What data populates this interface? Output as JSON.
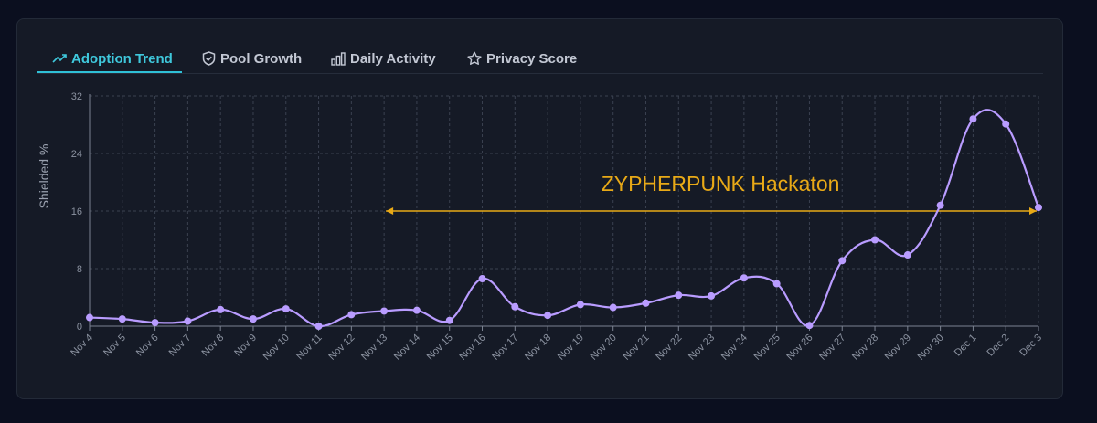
{
  "tabs": [
    {
      "label": "Adoption Trend",
      "icon": "trending-up-icon",
      "active": true
    },
    {
      "label": "Pool Growth",
      "icon": "shield-icon",
      "active": false
    },
    {
      "label": "Daily Activity",
      "icon": "bar-chart-icon",
      "active": false
    },
    {
      "label": "Privacy Score",
      "icon": "star-icon",
      "active": false
    }
  ],
  "colors": {
    "accent": "#3fc8dc",
    "line": "#b99cff",
    "annotation": "#e8a917",
    "background": "#0b0f1f",
    "card": "#151a26"
  },
  "chart_data": {
    "type": "line",
    "xlabel": "",
    "ylabel": "Shielded %",
    "ylim": [
      0,
      32
    ],
    "yticks": [
      "0",
      "8",
      "16",
      "24",
      "32"
    ],
    "grid": true,
    "categories": [
      "Nov 4",
      "Nov 5",
      "Nov 6",
      "Nov 7",
      "Nov 8",
      "Nov 9",
      "Nov 10",
      "Nov 11",
      "Nov 12",
      "Nov 13",
      "Nov 14",
      "Nov 15",
      "Nov 16",
      "Nov 17",
      "Nov 18",
      "Nov 19",
      "Nov 20",
      "Nov 21",
      "Nov 22",
      "Nov 23",
      "Nov 24",
      "Nov 25",
      "Nov 26",
      "Nov 27",
      "Nov 28",
      "Nov 29",
      "Nov 30",
      "Dec 1",
      "Dec 2",
      "Dec 3"
    ],
    "series": [
      {
        "values": [
          1.2,
          1.0,
          0.5,
          0.7,
          2.3,
          1.0,
          2.4,
          0.0,
          1.6,
          2.1,
          2.2,
          0.8,
          6.6,
          2.7,
          1.5,
          3.0,
          2.6,
          3.2,
          4.3,
          4.2,
          6.7,
          5.9,
          0.1,
          9.1,
          12.0,
          9.9,
          16.8,
          28.8,
          28.1,
          16.5
        ]
      }
    ],
    "annotation": {
      "text": "ZYPHERPUNK Hackaton",
      "from": "Nov 13",
      "to": "Dec 3",
      "y": 16
    }
  }
}
